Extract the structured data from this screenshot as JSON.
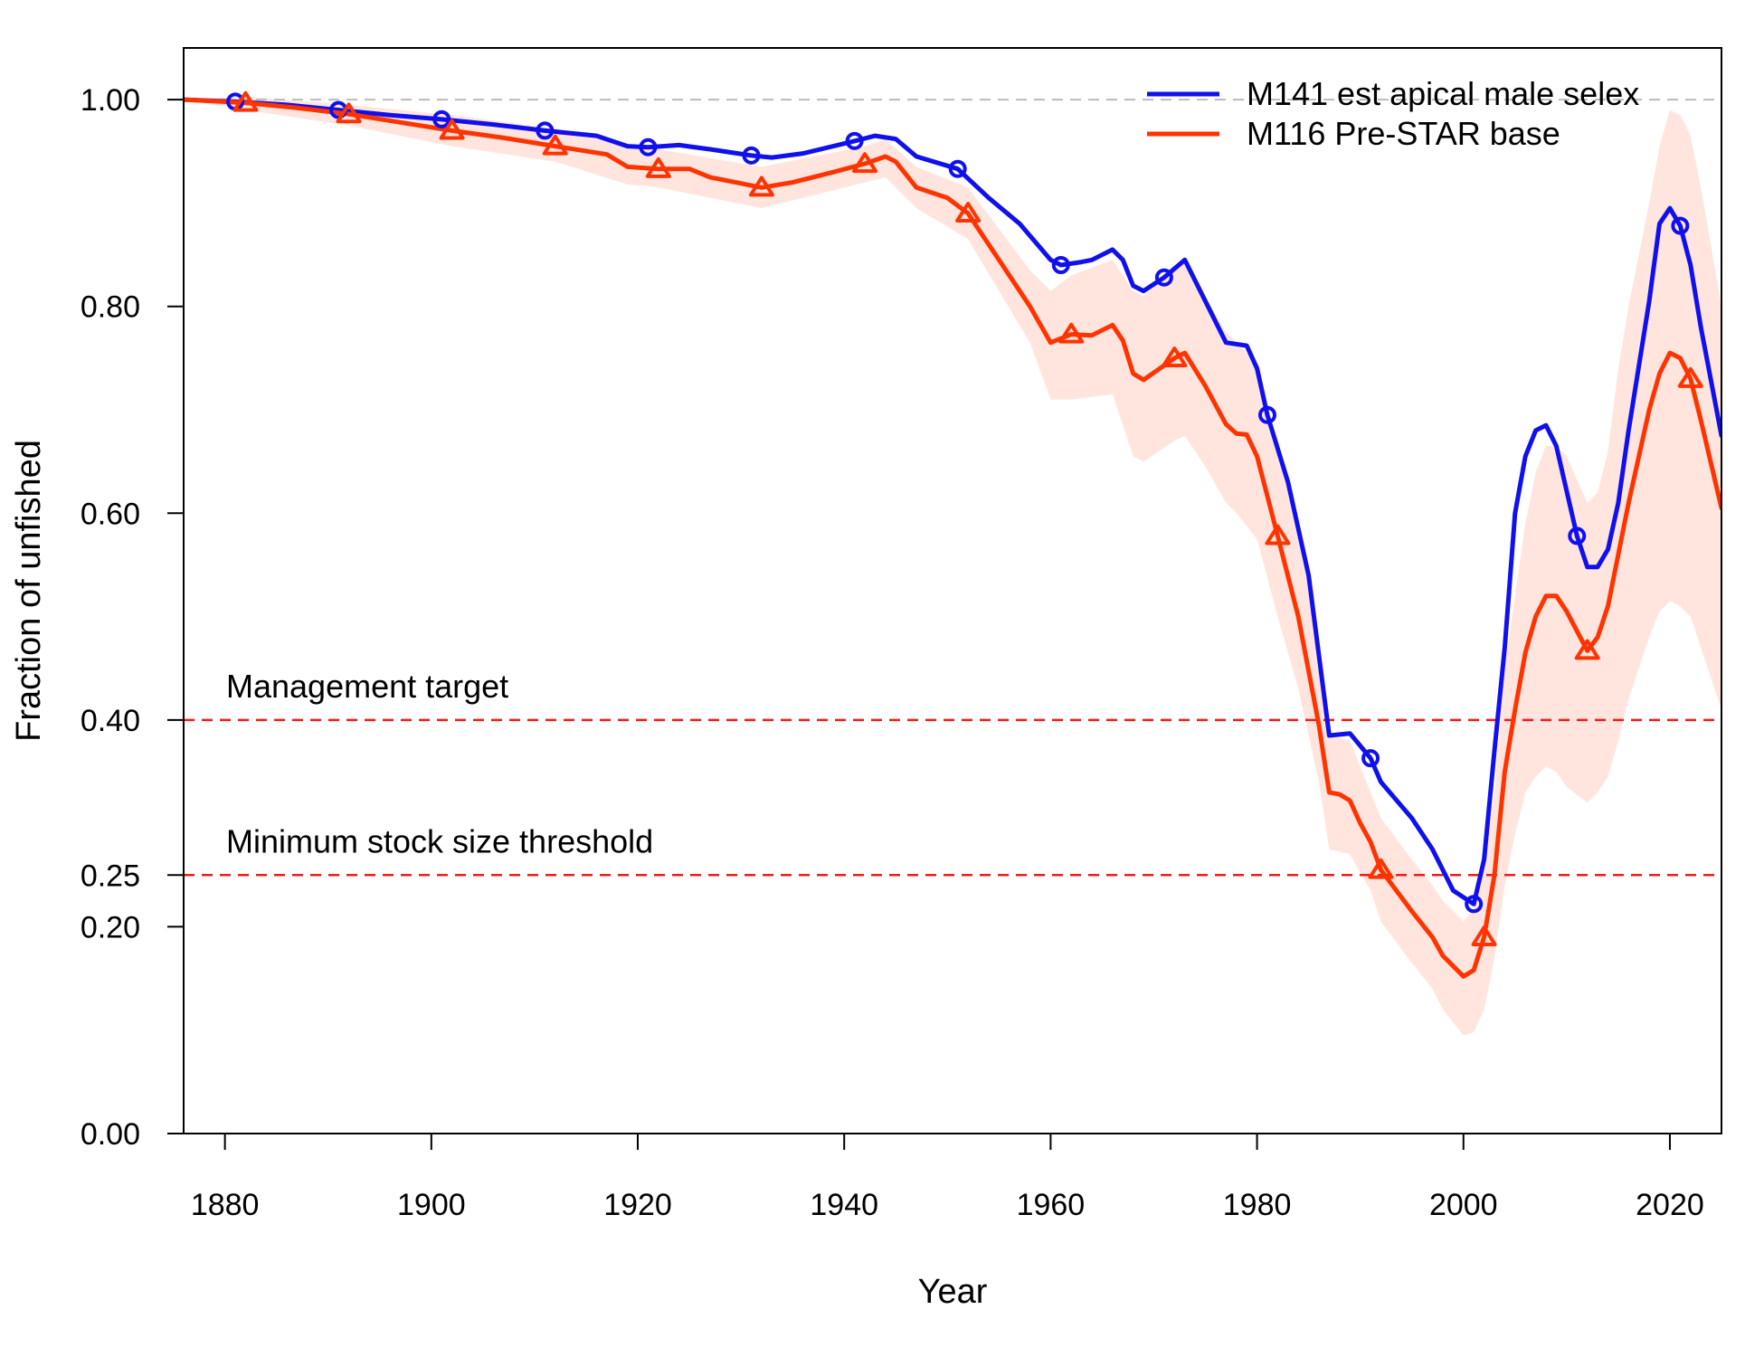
{
  "chart_data": {
    "type": "line",
    "xlabel": "Year",
    "ylabel": "Fraction of unfished",
    "xlim": [
      1876,
      2025
    ],
    "ylim": [
      0,
      1.05
    ],
    "x_ticks": [
      1880,
      1900,
      1920,
      1940,
      1960,
      1980,
      2000,
      2020
    ],
    "y_ticks": [
      {
        "value": 0.0,
        "label": "0.00"
      },
      {
        "value": 0.2,
        "label": "0.20"
      },
      {
        "value": 0.25,
        "label": "0.25"
      },
      {
        "value": 0.4,
        "label": "0.40"
      },
      {
        "value": 0.6,
        "label": "0.60"
      },
      {
        "value": 0.8,
        "label": "0.80"
      },
      {
        "value": 1.0,
        "label": "1.00"
      }
    ],
    "legend_position": "top-right",
    "reference_lines": [
      {
        "y": 1.0,
        "label": "",
        "color": "#bbbbbb",
        "style": "dashed"
      },
      {
        "y": 0.4,
        "label": "Management target",
        "color": "#ee1c1c",
        "style": "dashed"
      },
      {
        "y": 0.25,
        "label": "Minimum stock size threshold",
        "color": "#ee1c1c",
        "style": "dashed"
      }
    ],
    "series": [
      {
        "name": "M141 est apical male selex",
        "color": "#1010ee",
        "marker": "circle",
        "marker_years": [
          1881,
          1891,
          1901,
          1911,
          1921,
          1931,
          1941,
          1951,
          1961,
          1971,
          1981,
          1991,
          2001,
          2011,
          2021
        ],
        "points": [
          [
            1876,
            1.0
          ],
          [
            1881,
            0.998
          ],
          [
            1886,
            0.995
          ],
          [
            1891,
            0.99
          ],
          [
            1896,
            0.985
          ],
          [
            1901,
            0.981
          ],
          [
            1906,
            0.976
          ],
          [
            1911,
            0.97
          ],
          [
            1916,
            0.965
          ],
          [
            1919,
            0.955
          ],
          [
            1921,
            0.954
          ],
          [
            1924,
            0.956
          ],
          [
            1927,
            0.952
          ],
          [
            1931,
            0.946
          ],
          [
            1933,
            0.944
          ],
          [
            1936,
            0.948
          ],
          [
            1941,
            0.96
          ],
          [
            1943,
            0.965
          ],
          [
            1945,
            0.962
          ],
          [
            1947,
            0.945
          ],
          [
            1951,
            0.933
          ],
          [
            1954,
            0.905
          ],
          [
            1957,
            0.88
          ],
          [
            1960,
            0.845
          ],
          [
            1961,
            0.84
          ],
          [
            1963,
            0.843
          ],
          [
            1964,
            0.845
          ],
          [
            1966,
            0.855
          ],
          [
            1967,
            0.845
          ],
          [
            1968,
            0.82
          ],
          [
            1969,
            0.815
          ],
          [
            1971,
            0.828
          ],
          [
            1973,
            0.845
          ],
          [
            1975,
            0.805
          ],
          [
            1977,
            0.765
          ],
          [
            1979,
            0.762
          ],
          [
            1980,
            0.74
          ],
          [
            1981,
            0.695
          ],
          [
            1983,
            0.63
          ],
          [
            1985,
            0.54
          ],
          [
            1987,
            0.385
          ],
          [
            1989,
            0.387
          ],
          [
            1991,
            0.363
          ],
          [
            1992,
            0.34
          ],
          [
            1995,
            0.305
          ],
          [
            1997,
            0.275
          ],
          [
            1999,
            0.235
          ],
          [
            2001,
            0.222
          ],
          [
            2002,
            0.265
          ],
          [
            2003,
            0.37
          ],
          [
            2004,
            0.47
          ],
          [
            2005,
            0.6
          ],
          [
            2006,
            0.655
          ],
          [
            2007,
            0.68
          ],
          [
            2008,
            0.685
          ],
          [
            2009,
            0.665
          ],
          [
            2011,
            0.578
          ],
          [
            2012,
            0.548
          ],
          [
            2013,
            0.548
          ],
          [
            2014,
            0.565
          ],
          [
            2015,
            0.61
          ],
          [
            2016,
            0.68
          ],
          [
            2018,
            0.805
          ],
          [
            2019,
            0.88
          ],
          [
            2020,
            0.895
          ],
          [
            2021,
            0.878
          ],
          [
            2022,
            0.84
          ],
          [
            2023,
            0.78
          ],
          [
            2025,
            0.675
          ]
        ]
      },
      {
        "name": "M116 Pre-STAR base",
        "color": "#ff3300",
        "marker": "triangle",
        "marker_years": [
          1882,
          1892,
          1902,
          1912,
          1922,
          1932,
          1942,
          1952,
          1962,
          1972,
          1982,
          1992,
          2002,
          2012,
          2022
        ],
        "points": [
          [
            1876,
            1.0
          ],
          [
            1882,
            0.997
          ],
          [
            1887,
            0.992
          ],
          [
            1892,
            0.986
          ],
          [
            1897,
            0.978
          ],
          [
            1902,
            0.97
          ],
          [
            1907,
            0.963
          ],
          [
            1912,
            0.955
          ],
          [
            1917,
            0.947
          ],
          [
            1919,
            0.935
          ],
          [
            1922,
            0.933
          ],
          [
            1925,
            0.933
          ],
          [
            1927,
            0.925
          ],
          [
            1932,
            0.915
          ],
          [
            1935,
            0.92
          ],
          [
            1939,
            0.93
          ],
          [
            1942,
            0.938
          ],
          [
            1944,
            0.945
          ],
          [
            1945,
            0.94
          ],
          [
            1947,
            0.915
          ],
          [
            1950,
            0.905
          ],
          [
            1952,
            0.89
          ],
          [
            1955,
            0.845
          ],
          [
            1958,
            0.8
          ],
          [
            1960,
            0.765
          ],
          [
            1962,
            0.773
          ],
          [
            1964,
            0.772
          ],
          [
            1966,
            0.782
          ],
          [
            1967,
            0.767
          ],
          [
            1968,
            0.735
          ],
          [
            1969,
            0.729
          ],
          [
            1972,
            0.75
          ],
          [
            1973,
            0.755
          ],
          [
            1975,
            0.723
          ],
          [
            1977,
            0.686
          ],
          [
            1978,
            0.677
          ],
          [
            1979,
            0.676
          ],
          [
            1980,
            0.655
          ],
          [
            1982,
            0.578
          ],
          [
            1984,
            0.5
          ],
          [
            1986,
            0.395
          ],
          [
            1987,
            0.33
          ],
          [
            1988,
            0.328
          ],
          [
            1989,
            0.322
          ],
          [
            1990,
            0.3
          ],
          [
            1991,
            0.282
          ],
          [
            1992,
            0.255
          ],
          [
            1995,
            0.215
          ],
          [
            1997,
            0.19
          ],
          [
            1998,
            0.172
          ],
          [
            2000,
            0.152
          ],
          [
            2001,
            0.158
          ],
          [
            2002,
            0.19
          ],
          [
            2003,
            0.25
          ],
          [
            2004,
            0.35
          ],
          [
            2005,
            0.41
          ],
          [
            2006,
            0.465
          ],
          [
            2007,
            0.5
          ],
          [
            2008,
            0.52
          ],
          [
            2009,
            0.52
          ],
          [
            2010,
            0.505
          ],
          [
            2012,
            0.467
          ],
          [
            2013,
            0.48
          ],
          [
            2014,
            0.51
          ],
          [
            2015,
            0.56
          ],
          [
            2016,
            0.61
          ],
          [
            2018,
            0.7
          ],
          [
            2019,
            0.735
          ],
          [
            2020,
            0.755
          ],
          [
            2021,
            0.75
          ],
          [
            2022,
            0.73
          ],
          [
            2023,
            0.69
          ],
          [
            2025,
            0.605
          ]
        ],
        "interval": [
          [
            1876,
            1.0,
            1.0
          ],
          [
            1882,
            0.99,
            1.003
          ],
          [
            1892,
            0.975,
            0.995
          ],
          [
            1902,
            0.955,
            0.985
          ],
          [
            1912,
            0.94,
            0.972
          ],
          [
            1919,
            0.918,
            0.955
          ],
          [
            1922,
            0.915,
            0.952
          ],
          [
            1932,
            0.895,
            0.935
          ],
          [
            1942,
            0.92,
            0.955
          ],
          [
            1944,
            0.925,
            0.962
          ],
          [
            1947,
            0.895,
            0.935
          ],
          [
            1952,
            0.865,
            0.915
          ],
          [
            1955,
            0.815,
            0.875
          ],
          [
            1958,
            0.765,
            0.835
          ],
          [
            1960,
            0.71,
            0.815
          ],
          [
            1962,
            0.71,
            0.83
          ],
          [
            1966,
            0.715,
            0.845
          ],
          [
            1968,
            0.655,
            0.815
          ],
          [
            1969,
            0.65,
            0.81
          ],
          [
            1972,
            0.67,
            0.835
          ],
          [
            1973,
            0.675,
            0.845
          ],
          [
            1975,
            0.645,
            0.81
          ],
          [
            1977,
            0.61,
            0.775
          ],
          [
            1978,
            0.6,
            0.765
          ],
          [
            1980,
            0.575,
            0.745
          ],
          [
            1982,
            0.5,
            0.665
          ],
          [
            1984,
            0.43,
            0.585
          ],
          [
            1986,
            0.34,
            0.47
          ],
          [
            1987,
            0.275,
            0.385
          ],
          [
            1989,
            0.27,
            0.38
          ],
          [
            1991,
            0.235,
            0.33
          ],
          [
            1992,
            0.205,
            0.305
          ],
          [
            1995,
            0.165,
            0.265
          ],
          [
            1997,
            0.14,
            0.24
          ],
          [
            1998,
            0.12,
            0.225
          ],
          [
            2000,
            0.095,
            0.205
          ],
          [
            2001,
            0.098,
            0.218
          ],
          [
            2002,
            0.12,
            0.26
          ],
          [
            2003,
            0.17,
            0.33
          ],
          [
            2004,
            0.24,
            0.45
          ],
          [
            2005,
            0.29,
            0.52
          ],
          [
            2006,
            0.33,
            0.59
          ],
          [
            2007,
            0.345,
            0.64
          ],
          [
            2008,
            0.355,
            0.665
          ],
          [
            2009,
            0.35,
            0.665
          ],
          [
            2010,
            0.335,
            0.655
          ],
          [
            2012,
            0.32,
            0.61
          ],
          [
            2013,
            0.33,
            0.62
          ],
          [
            2014,
            0.345,
            0.66
          ],
          [
            2015,
            0.38,
            0.74
          ],
          [
            2016,
            0.42,
            0.8
          ],
          [
            2018,
            0.48,
            0.9
          ],
          [
            2019,
            0.505,
            0.955
          ],
          [
            2020,
            0.515,
            0.99
          ],
          [
            2021,
            0.51,
            0.985
          ],
          [
            2022,
            0.5,
            0.965
          ],
          [
            2023,
            0.47,
            0.915
          ],
          [
            2025,
            0.41,
            0.8
          ]
        ]
      }
    ]
  }
}
